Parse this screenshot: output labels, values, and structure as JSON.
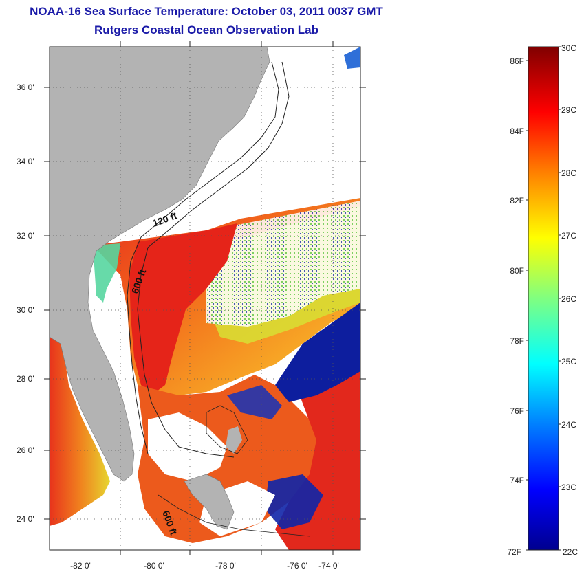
{
  "title_line1": "NOAA-16 Sea Surface Temperature:  October 03, 2011 0037 GMT",
  "title_line2": "Rutgers Coastal Ocean Observation Lab",
  "map": {
    "lon_range": [
      -83,
      -73
    ],
    "lat_range": [
      23,
      37
    ],
    "lon_ticks": [
      "-82 0'",
      "-80 0'",
      "-78 0'",
      "-76 0'",
      "-74 0'"
    ],
    "lat_ticks": [
      "36 0'",
      "34 0'",
      "32 0'",
      "30 0'",
      "28 0'",
      "26 0'",
      "24 0'"
    ],
    "contour_labels": [
      "120 ft",
      "600 ft",
      "600 ft"
    ],
    "colors": {
      "land": "#b3b3b3",
      "cloud": "#ffffff",
      "warm": "#e8231a",
      "cold": "#0a1a9c",
      "gridline": "#555555"
    }
  },
  "colorbar": {
    "celsius_labels": [
      "30C",
      "29C",
      "28C",
      "27C",
      "26C",
      "25C",
      "24C",
      "23C",
      "22C"
    ],
    "fahrenheit_labels": [
      "86F",
      "84F",
      "82F",
      "80F",
      "78F",
      "76F",
      "74F",
      "72F"
    ],
    "colormap": "jet"
  }
}
